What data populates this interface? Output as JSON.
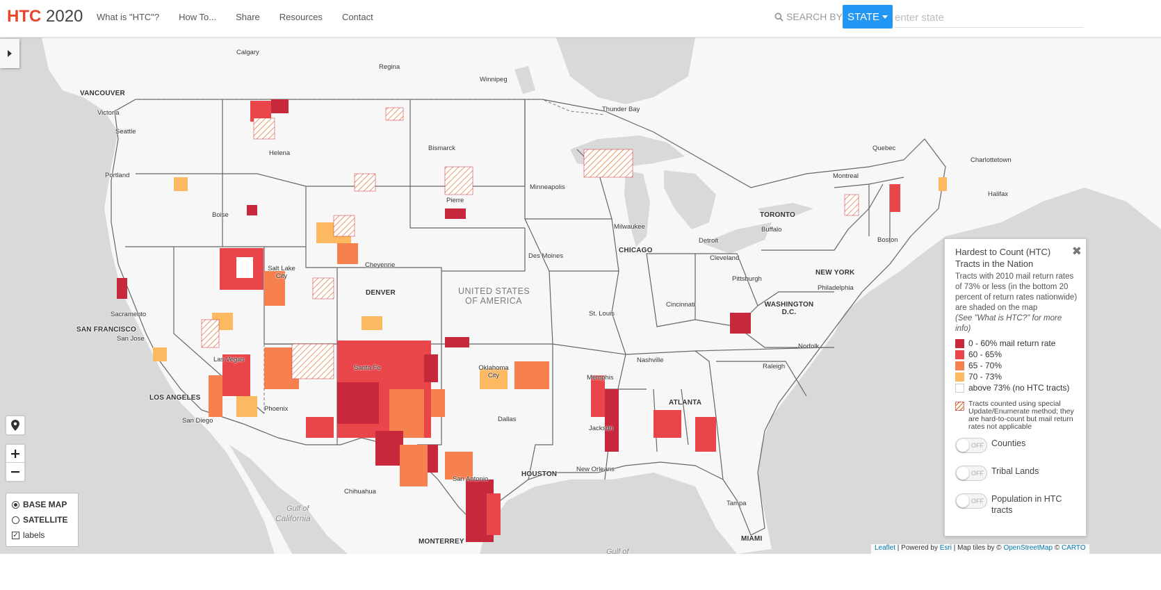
{
  "brand": {
    "part1": "HTC",
    "part2": " 2020"
  },
  "nav": [
    "What is \"HTC\"?",
    "How To...",
    "Share",
    "Resources",
    "Contact"
  ],
  "search": {
    "label": "SEARCH BY:",
    "button": "STATE",
    "placeholder": "enter state"
  },
  "map": {
    "country_label_1": "UNITED STATES",
    "country_label_2": "OF AMERICA",
    "gulf_label_1": "Gulf of",
    "gulf_label_2": "California",
    "gulf_bottom": "Gulf of",
    "cities": [
      {
        "name": "Calgary",
        "big": false
      },
      {
        "name": "Regina",
        "big": false
      },
      {
        "name": "Winnipeg",
        "big": false
      },
      {
        "name": "VANCOUVER",
        "big": true
      },
      {
        "name": "Victoria",
        "big": false
      },
      {
        "name": "Seattle",
        "big": false
      },
      {
        "name": "Helena",
        "big": false
      },
      {
        "name": "Bismarck",
        "big": false
      },
      {
        "name": "Thunder Bay",
        "big": false
      },
      {
        "name": "Quebec",
        "big": false
      },
      {
        "name": "Charlottetown",
        "big": false
      },
      {
        "name": "Montreal",
        "big": false
      },
      {
        "name": "Halifax",
        "big": false
      },
      {
        "name": "Portland",
        "big": false
      },
      {
        "name": "Minneapolis",
        "big": false
      },
      {
        "name": "Pierre",
        "big": false
      },
      {
        "name": "Boise",
        "big": false
      },
      {
        "name": "Milwaukee",
        "big": false
      },
      {
        "name": "TORONTO",
        "big": true
      },
      {
        "name": "Buffalo",
        "big": false
      },
      {
        "name": "Boston",
        "big": false
      },
      {
        "name": "Detroit",
        "big": false
      },
      {
        "name": "CHICAGO",
        "big": true
      },
      {
        "name": "Des Moines",
        "big": false
      },
      {
        "name": "Cleveland",
        "big": false
      },
      {
        "name": "Salt Lake City",
        "big": false
      },
      {
        "name": "Cheyenne",
        "big": false
      },
      {
        "name": "NEW YORK",
        "big": true
      },
      {
        "name": "Pittsburgh",
        "big": false
      },
      {
        "name": "Philadelphia",
        "big": false
      },
      {
        "name": "DENVER",
        "big": true
      },
      {
        "name": "Sacramento",
        "big": false
      },
      {
        "name": "WASHINGTON D.C.",
        "big": true
      },
      {
        "name": "Cincinnati",
        "big": false
      },
      {
        "name": "St. Louis",
        "big": false
      },
      {
        "name": "SAN FRANCISCO",
        "big": true
      },
      {
        "name": "San Jose",
        "big": false
      },
      {
        "name": "Norfolk",
        "big": false
      },
      {
        "name": "Las Vegas",
        "big": false
      },
      {
        "name": "Nashville",
        "big": false
      },
      {
        "name": "Raleigh",
        "big": false
      },
      {
        "name": "Santa Fe",
        "big": false
      },
      {
        "name": "Oklahoma City",
        "big": false
      },
      {
        "name": "Memphis",
        "big": false
      },
      {
        "name": "LOS ANGELES",
        "big": true
      },
      {
        "name": "ATLANTA",
        "big": true
      },
      {
        "name": "Phoenix",
        "big": false
      },
      {
        "name": "San Diego",
        "big": false
      },
      {
        "name": "Dallas",
        "big": false
      },
      {
        "name": "Jackson",
        "big": false
      },
      {
        "name": "New Orleans",
        "big": false
      },
      {
        "name": "San Antonio",
        "big": false
      },
      {
        "name": "HOUSTON",
        "big": true
      },
      {
        "name": "Chihuahua",
        "big": false
      },
      {
        "name": "Tampa",
        "big": false
      },
      {
        "name": "MONTERREY",
        "big": true
      },
      {
        "name": "MIAMI",
        "big": true
      }
    ]
  },
  "basemap": {
    "base": "BASE MAP",
    "satellite": "SATELLITE",
    "labels": "labels"
  },
  "legend": {
    "title": "Hardest to Count (HTC) Tracts in the Nation",
    "description": "Tracts with 2010 mail return rates of 73% or less (in the bottom 20 percent of return rates nationwide) are shaded on the map",
    "note": "(See \"What is HTC?\" for more info)",
    "items": [
      {
        "label": "0 - 60% mail return rate",
        "color": "#c8283c"
      },
      {
        "label": "60 - 65%",
        "color": "#e8464a"
      },
      {
        "label": "65 - 70%",
        "color": "#f6804e"
      },
      {
        "label": "70 - 73%",
        "color": "#fdb862"
      },
      {
        "label": "above 73% (no HTC tracts)",
        "color": "#ffffff"
      }
    ],
    "special": "Tracts counted using special Update/Enumerate method; they are hard-to-count but mail return rates not applicable",
    "toggles": [
      {
        "state": "OFF",
        "label": "Counties"
      },
      {
        "state": "OFF",
        "label": "Tribal Lands"
      },
      {
        "state": "OFF",
        "label": "Population in HTC tracts"
      }
    ]
  },
  "attribution": {
    "leaflet": "Leaflet",
    "powered": " | Powered by ",
    "esri": "Esri",
    "tiles": " | Map tiles by © ",
    "osm": "OpenStreetMap",
    "carto_pre": " © ",
    "carto": "CARTO"
  },
  "colors": {
    "accent": "#e8452c",
    "button": "#2196f3",
    "land": "#f7f7f7",
    "water": "#dcdcdc"
  }
}
